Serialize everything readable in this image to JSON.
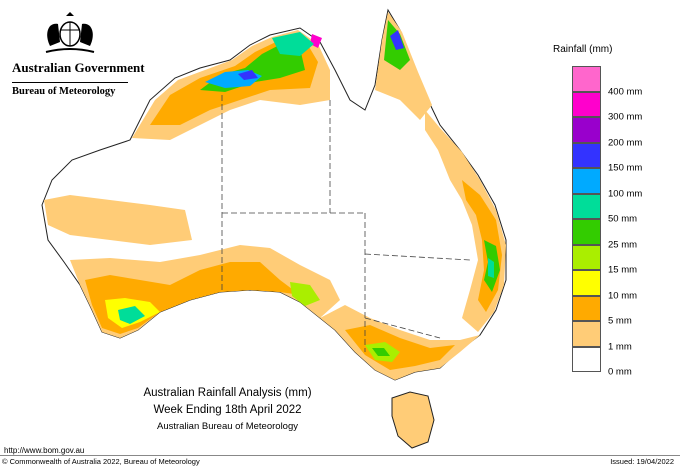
{
  "header": {
    "government": "Australian Government",
    "bureau": "Bureau of Meteorology",
    "crest_icon": "coat-of-arms-icon"
  },
  "legend": {
    "title": "Rainfall (mm)",
    "items": [
      {
        "label": "400 mm",
        "color": "#ff66cc"
      },
      {
        "label": "300 mm",
        "color": "#ff00cc"
      },
      {
        "label": "200 mm",
        "color": "#9900cc"
      },
      {
        "label": "150 mm",
        "color": "#3333ff"
      },
      {
        "label": "100 mm",
        "color": "#00aaff"
      },
      {
        "label": "50 mm",
        "color": "#00dd99"
      },
      {
        "label": "25 mm",
        "color": "#33cc00"
      },
      {
        "label": "15 mm",
        "color": "#aaee00"
      },
      {
        "label": "10 mm",
        "color": "#ffff00"
      },
      {
        "label": "5 mm",
        "color": "#ffaa00"
      },
      {
        "label": "1 mm",
        "color": "#ffcc77"
      },
      {
        "label": "0 mm",
        "color": "#ffffff"
      }
    ]
  },
  "caption": {
    "line1": "Australian Rainfall Analysis (mm)",
    "line2": "Week Ending 18th April 2022",
    "line3": "Australian Bureau of Meteorology"
  },
  "footer": {
    "url": "http://www.bom.gov.au",
    "copyright": "© Commonwealth of Australia 2022, Bureau of Meteorology",
    "issued": "Issued: 19/04/2022"
  }
}
